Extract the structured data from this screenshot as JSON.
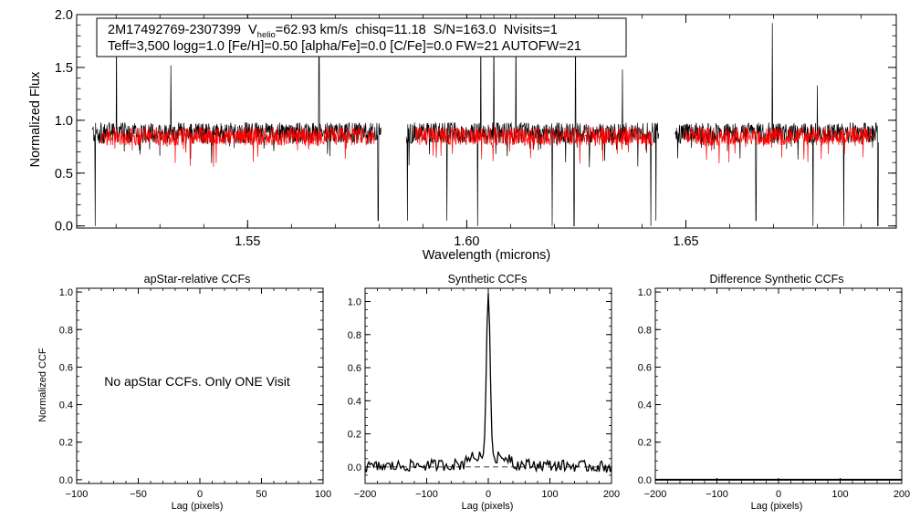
{
  "chart_data": [
    {
      "type": "line",
      "info_box": {
        "line1_prefix": "2M17492769-2307399  V",
        "line1_sub": "helio",
        "line1_suffix": "=62.93 km/s  chisq=11.18  S/N=163.0  Nvisits=1",
        "line2": "Teff=3,500 logg=1.0 [Fe/H]=0.50 [alpha/Fe]=0.0 [C/Fe]=0.0 FW=21 AUTOFW=21"
      },
      "xlabel": "Wavelength (microns)",
      "ylabel": "Normalized Flux",
      "xlim": [
        1.511,
        1.698
      ],
      "ylim": [
        -0.02,
        2.0
      ],
      "xticks": [
        1.55,
        1.6,
        1.65
      ],
      "xtick_labels": [
        "1.55",
        "1.60",
        "1.65"
      ],
      "yticks": [
        0.0,
        0.5,
        1.0,
        1.5,
        2.0
      ],
      "ytick_labels": [
        "0.0",
        "0.5",
        "1.0",
        "1.5",
        "2.0"
      ],
      "detectors": [
        [
          1.5145,
          1.5805
        ],
        [
          1.5862,
          1.6438
        ],
        [
          1.6475,
          1.694
        ]
      ],
      "series": [
        {
          "name": "",
          "color": "#000000",
          "kind": "observed",
          "mean": 0.88,
          "scatter": 0.1,
          "spikes": [
            [
              1.5201,
              1.92
            ],
            [
              1.5325,
              1.52
            ],
            [
              1.5663,
              1.65
            ],
            [
              1.6032,
              2.0
            ],
            [
              1.6062,
              2.0
            ],
            [
              1.6112,
              2.0
            ],
            [
              1.6248,
              2.0
            ],
            [
              1.6355,
              1.48
            ],
            [
              1.6697,
              1.92
            ],
            [
              1.68,
              1.33
            ]
          ],
          "dips": [
            [
              1.5152,
              0.0
            ],
            [
              1.5798,
              0.05
            ],
            [
              1.5865,
              0.05
            ],
            [
              1.5955,
              0.05
            ],
            [
              1.6025,
              0.0
            ],
            [
              1.6195,
              0.0
            ],
            [
              1.6245,
              0.0
            ],
            [
              1.642,
              0.0
            ],
            [
              1.6432,
              0.05
            ],
            [
              1.666,
              0.05
            ],
            [
              1.679,
              0.0
            ],
            [
              1.686,
              0.0
            ],
            [
              1.6938,
              0.0
            ]
          ]
        },
        {
          "name": "",
          "color": "#ff0000",
          "kind": "model",
          "mean": 0.85,
          "scatter": 0.09
        }
      ]
    },
    {
      "type": "line",
      "title": "apStar-relative CCFs",
      "ylabel": "Normalized CCF",
      "xlabel": "Lag (pixels)",
      "xlim": [
        -100,
        100
      ],
      "ylim": [
        -0.02,
        1.02
      ],
      "xticks": [
        -100,
        -50,
        0,
        50,
        100
      ],
      "xtick_labels": [
        "−100",
        "−50",
        "0",
        "50",
        "100"
      ],
      "yticks": [
        0.0,
        0.2,
        0.4,
        0.6,
        0.8,
        1.0
      ],
      "ytick_labels": [
        "0.0",
        "0.2",
        "0.4",
        "0.6",
        "0.8",
        "1.0"
      ],
      "annotation": "No apStar CCFs.  Only ONE Visit",
      "series": []
    },
    {
      "type": "line",
      "title": "Synthetic CCFs",
      "xlabel": "Lag (pixels)",
      "xlim": [
        -200,
        200
      ],
      "ylim": [
        -0.1,
        1.08
      ],
      "xticks": [
        -200,
        -100,
        0,
        100,
        200
      ],
      "xtick_labels": [
        "−200",
        "−100",
        "0",
        "100",
        "200"
      ],
      "yticks": [
        0.0,
        0.2,
        0.4,
        0.6,
        0.8,
        1.0
      ],
      "ytick_labels": [
        "0.0",
        "0.2",
        "0.4",
        "0.6",
        "0.8",
        "1.0"
      ],
      "reference_line_y": 0.0,
      "series": [
        {
          "name": "",
          "color": "#000000",
          "peak_x": 0,
          "peak_y": 1.0,
          "baseline": 0.0,
          "noise": 0.035
        }
      ]
    },
    {
      "type": "line",
      "title": "Difference Synthetic CCFs",
      "xlabel": "Lag (pixels)",
      "xlim": [
        -200,
        200
      ],
      "ylim": [
        -0.02,
        1.02
      ],
      "xticks": [
        -200,
        -100,
        0,
        100,
        200
      ],
      "xtick_labels": [
        "−200",
        "−100",
        "0",
        "100",
        "200"
      ],
      "yticks": [
        0.0,
        0.2,
        0.4,
        0.6,
        0.8,
        1.0
      ],
      "ytick_labels": [
        "0.0",
        "0.2",
        "0.4",
        "0.6",
        "0.8",
        "1.0"
      ],
      "series": [
        {
          "name": "",
          "color": "#000000",
          "y": 0.0
        }
      ]
    }
  ]
}
